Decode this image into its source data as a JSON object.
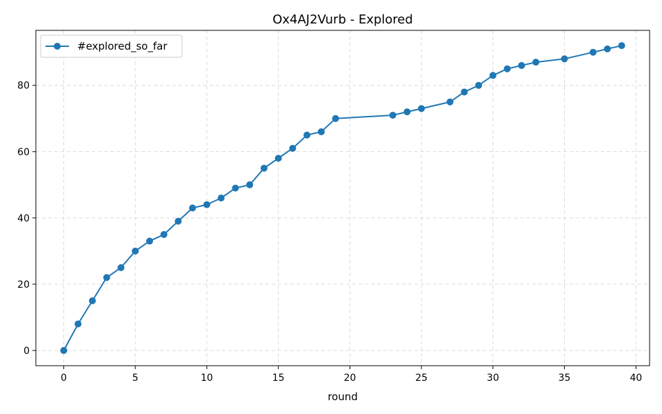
{
  "chart_data": {
    "type": "line",
    "title": "Ox4AJ2Vurb - Explored",
    "xlabel": "round",
    "ylabel": "",
    "xlim": [
      -1.95,
      40.95
    ],
    "ylim": [
      -4.6,
      96.6
    ],
    "xticks": [
      0,
      5,
      10,
      15,
      20,
      25,
      30,
      35,
      40
    ],
    "yticks": [
      0,
      20,
      40,
      60,
      80
    ],
    "grid": true,
    "legend_position": "top-left",
    "series": [
      {
        "name": "#explored_so_far",
        "color": "#1f77b4",
        "marker": "circle",
        "x": [
          0,
          1,
          2,
          3,
          4,
          5,
          6,
          7,
          8,
          9,
          10,
          11,
          12,
          13,
          14,
          15,
          16,
          17,
          18,
          19,
          23,
          24,
          25,
          27,
          28,
          29,
          30,
          31,
          32,
          33,
          35,
          37,
          38,
          39
        ],
        "y": [
          0,
          8,
          15,
          22,
          25,
          30,
          33,
          35,
          39,
          43,
          44,
          46,
          49,
          50,
          55,
          58,
          61,
          65,
          66,
          70,
          71,
          72,
          73,
          75,
          78,
          80,
          83,
          85,
          86,
          87,
          88,
          90,
          91,
          92
        ]
      }
    ]
  }
}
